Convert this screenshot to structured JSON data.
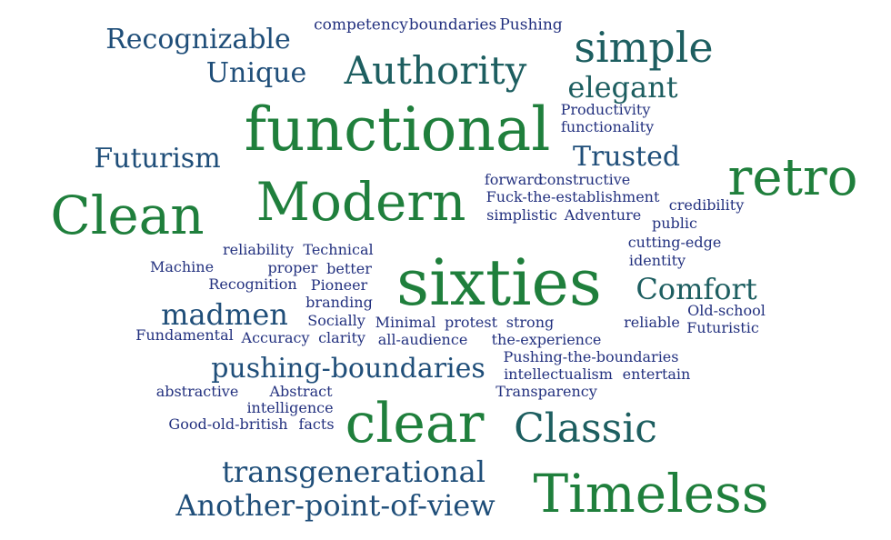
{
  "palette": {
    "green": "#1f7f3c",
    "teal": "#1d5e60",
    "blue": "#1f4e79",
    "navy": "#23317f"
  },
  "words": [
    {
      "text": "competency",
      "tone": "navy"
    },
    {
      "text": "boundaries",
      "tone": "navy"
    },
    {
      "text": "Pushing",
      "tone": "navy"
    },
    {
      "text": "Recognizable",
      "tone": "blue"
    },
    {
      "text": "simple",
      "tone": "teal"
    },
    {
      "text": "Unique",
      "tone": "blue"
    },
    {
      "text": "Authority",
      "tone": "teal"
    },
    {
      "text": "elegant",
      "tone": "teal"
    },
    {
      "text": "Productivity",
      "tone": "navy"
    },
    {
      "text": "functionality",
      "tone": "navy"
    },
    {
      "text": "functional",
      "tone": "green"
    },
    {
      "text": "Futurism",
      "tone": "blue"
    },
    {
      "text": "Trusted",
      "tone": "blue"
    },
    {
      "text": "retro",
      "tone": "green"
    },
    {
      "text": "forward",
      "tone": "navy"
    },
    {
      "text": "constructive",
      "tone": "navy"
    },
    {
      "text": "Fuck-the-establishment",
      "tone": "navy"
    },
    {
      "text": "credibility",
      "tone": "navy"
    },
    {
      "text": "Clean",
      "tone": "green"
    },
    {
      "text": "Modern",
      "tone": "green"
    },
    {
      "text": "simplistic",
      "tone": "navy"
    },
    {
      "text": "Adventure",
      "tone": "navy"
    },
    {
      "text": "public",
      "tone": "navy"
    },
    {
      "text": "cutting-edge",
      "tone": "navy"
    },
    {
      "text": "reliability",
      "tone": "navy"
    },
    {
      "text": "Technical",
      "tone": "navy"
    },
    {
      "text": "identity",
      "tone": "navy"
    },
    {
      "text": "Machine",
      "tone": "navy"
    },
    {
      "text": "proper",
      "tone": "navy"
    },
    {
      "text": "better",
      "tone": "navy"
    },
    {
      "text": "sixties",
      "tone": "green"
    },
    {
      "text": "Recognition",
      "tone": "navy"
    },
    {
      "text": "Pioneer",
      "tone": "navy"
    },
    {
      "text": "Comfort",
      "tone": "teal"
    },
    {
      "text": "branding",
      "tone": "navy"
    },
    {
      "text": "madmen",
      "tone": "blue"
    },
    {
      "text": "Old-school",
      "tone": "navy"
    },
    {
      "text": "Socially",
      "tone": "navy"
    },
    {
      "text": "Minimal",
      "tone": "navy"
    },
    {
      "text": "protest",
      "tone": "navy"
    },
    {
      "text": "strong",
      "tone": "navy"
    },
    {
      "text": "reliable",
      "tone": "navy"
    },
    {
      "text": "Futuristic",
      "tone": "navy"
    },
    {
      "text": "Fundamental",
      "tone": "navy"
    },
    {
      "text": "Accuracy",
      "tone": "navy"
    },
    {
      "text": "clarity",
      "tone": "navy"
    },
    {
      "text": "all-audience",
      "tone": "navy"
    },
    {
      "text": "the-experience",
      "tone": "navy"
    },
    {
      "text": "Pushing-the-boundaries",
      "tone": "navy"
    },
    {
      "text": "pushing-boundaries",
      "tone": "blue"
    },
    {
      "text": "intellectualism",
      "tone": "navy"
    },
    {
      "text": "entertain",
      "tone": "navy"
    },
    {
      "text": "abstractive",
      "tone": "navy"
    },
    {
      "text": "Abstract",
      "tone": "navy"
    },
    {
      "text": "Transparency",
      "tone": "navy"
    },
    {
      "text": "intelligence",
      "tone": "navy"
    },
    {
      "text": "clear",
      "tone": "green"
    },
    {
      "text": "Classic",
      "tone": "teal"
    },
    {
      "text": "Good-old-british",
      "tone": "navy"
    },
    {
      "text": "facts",
      "tone": "navy"
    },
    {
      "text": "transgenerational",
      "tone": "blue"
    },
    {
      "text": "Timeless",
      "tone": "green"
    },
    {
      "text": "Another-point-of-view",
      "tone": "blue"
    }
  ]
}
